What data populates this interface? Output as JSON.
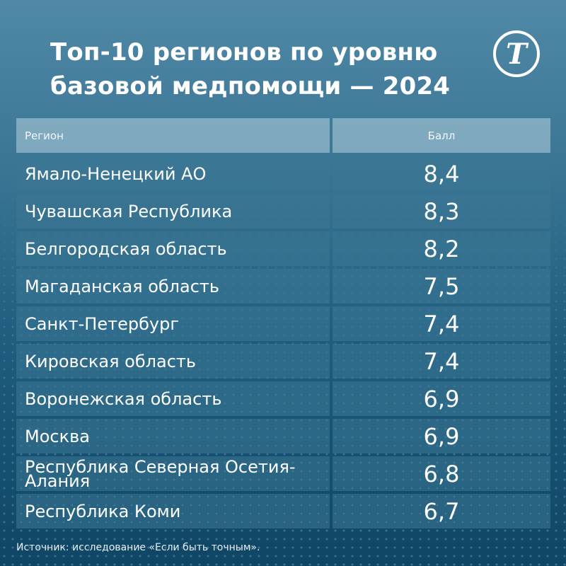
{
  "header": {
    "title_line1": "Топ-10 регионов по уровню",
    "title_line2": "базовой медпомощи — 2024",
    "logo_glyph": "Т",
    "logo_icon": "publisher-logo-icon"
  },
  "table": {
    "columns": [
      "Регион",
      "Балл"
    ],
    "rows": [
      {
        "region": "Ямало-Ненецкий АО",
        "score": "8,4"
      },
      {
        "region": "Чувашская Республика",
        "score": "8,3"
      },
      {
        "region": "Белгородская область",
        "score": "8,2"
      },
      {
        "region": "Магаданская область",
        "score": "7,5"
      },
      {
        "region": "Санкт-Петербург",
        "score": "7,4"
      },
      {
        "region": "Кировская область",
        "score": "7,4"
      },
      {
        "region": "Воронежская область",
        "score": "6,9"
      },
      {
        "region": "Москва",
        "score": "6,9"
      },
      {
        "region": "Республика Северная Осетия-Алания",
        "score": "6,8",
        "line1": "Республика Северная Осетия-",
        "line2": "Алания"
      },
      {
        "region": "Республика Коми",
        "score": "6,7"
      }
    ]
  },
  "footer": {
    "source": "Источник: исследование «Если быть точным»."
  },
  "colors": {
    "background_top": "#5089a6",
    "background_bottom": "#0f4565",
    "header_cell": "#8fb3c4",
    "data_cell": "#35708f",
    "text": "#ffffff"
  },
  "chart_data": {
    "type": "table",
    "title": "Топ-10 регионов по уровню базовой медпомощи — 2024",
    "columns": [
      "Регион",
      "Балл"
    ],
    "categories": [
      "Ямало-Ненецкий АО",
      "Чувашская Республика",
      "Белгородская область",
      "Магаданская область",
      "Санкт-Петербург",
      "Кировская область",
      "Воронежская область",
      "Москва",
      "Республика Северная Осетия-Алания",
      "Республика Коми"
    ],
    "values": [
      8.4,
      8.3,
      8.2,
      7.5,
      7.4,
      7.4,
      6.9,
      6.9,
      6.8,
      6.7
    ],
    "source": "Источник: исследование «Если быть точным»."
  }
}
